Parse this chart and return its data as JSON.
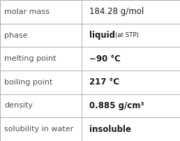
{
  "rows": [
    {
      "label": "molar mass",
      "value": "184.28 g/mol",
      "value_style": "normal"
    },
    {
      "label": "phase",
      "value": "liquid",
      "value_style": "bold",
      "suffix": "(at STP)"
    },
    {
      "label": "melting point",
      "value": "−90 °C",
      "value_style": "bold"
    },
    {
      "label": "boiling point",
      "value": "217 °C",
      "value_style": "bold"
    },
    {
      "label": "density",
      "value": "0.885 g/cm³",
      "value_style": "bold"
    },
    {
      "label": "solubility in water",
      "value": "insoluble",
      "value_style": "bold"
    }
  ],
  "col_split": 0.455,
  "background_color": "#ffffff",
  "border_color": "#b0b0b0",
  "label_color": "#505050",
  "value_color": "#1a1a1a",
  "label_fontsize": 8.0,
  "value_fontsize": 8.5,
  "suffix_fontsize": 6.2
}
